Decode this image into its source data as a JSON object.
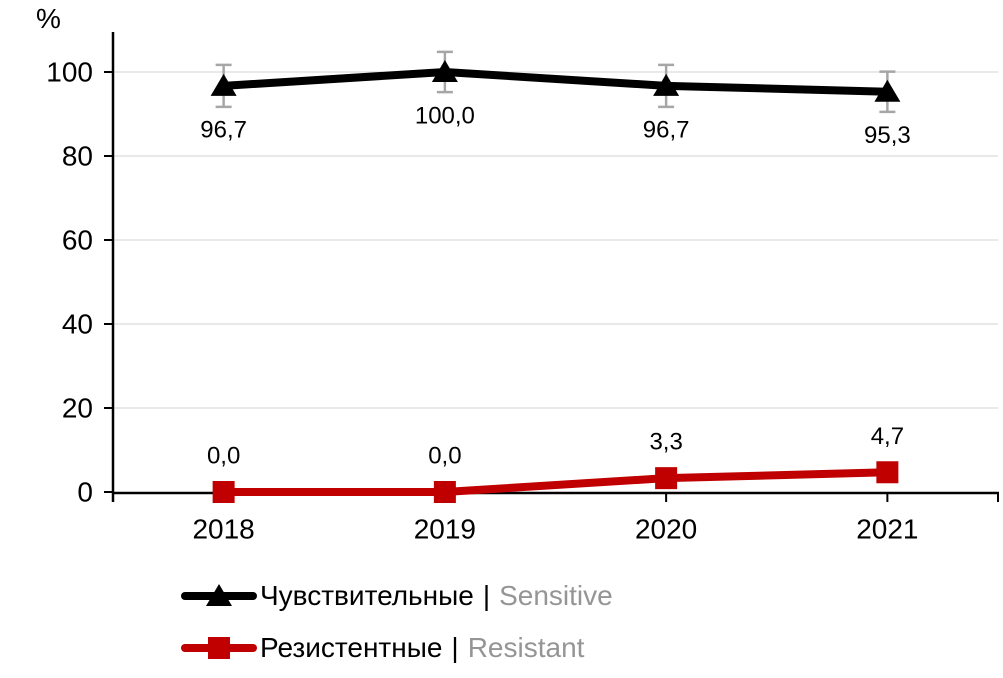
{
  "chart_data": {
    "type": "line",
    "title": "",
    "xlabel": "",
    "ylabel": "%",
    "categories": [
      "2018",
      "2019",
      "2020",
      "2021"
    ],
    "yticks": [
      0,
      20,
      40,
      60,
      80,
      100
    ],
    "y_tick_labels": [
      "0",
      "20",
      "40",
      "60",
      "80",
      "100"
    ],
    "ylim": [
      0,
      100
    ],
    "grid": true,
    "legend_position": "bottom-left",
    "legend_separator": "|",
    "series": [
      {
        "name_ru": "Чувствительные",
        "name_en": "Sensitive",
        "color": "#000000",
        "marker": "triangle",
        "values": [
          96.7,
          100.0,
          96.7,
          95.3
        ],
        "value_labels": [
          "96,7",
          "100,0",
          "96,7",
          "95,3"
        ],
        "label_position": "below",
        "error_bars": [
          5.0,
          4.8,
          5.0,
          4.8
        ],
        "error_bar_color": "#a6a6a6"
      },
      {
        "name_ru": "Резистентные",
        "name_en": "Resistant",
        "color": "#c00000",
        "marker": "square",
        "values": [
          0.0,
          0.0,
          3.3,
          4.7
        ],
        "value_labels": [
          "0,0",
          "0,0",
          "3,3",
          "4,7"
        ],
        "label_position": "above",
        "error_bars": null,
        "error_bar_color": null
      }
    ],
    "colors": {
      "grid": "#e2e2e2",
      "axis": "#000000",
      "tick_label": "#000000",
      "data_label": "#000000",
      "legend_secondary": "#959595"
    }
  }
}
